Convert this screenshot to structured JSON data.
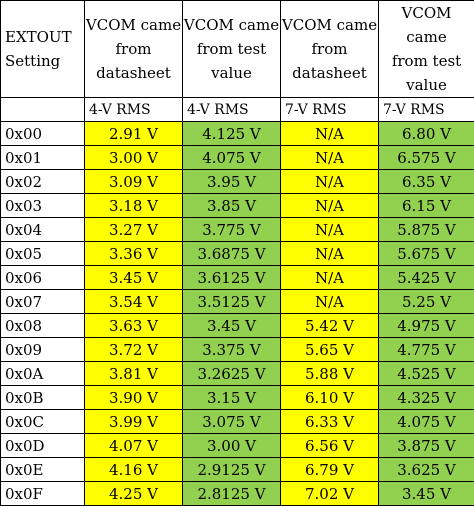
{
  "header": {
    "setting": [
      "EXTOUT",
      "Setting"
    ],
    "col1": [
      "VCOM came",
      "from",
      "datasheet"
    ],
    "col2": [
      "VCOM came",
      "from test",
      "value"
    ],
    "col3": [
      "VCOM came",
      "from",
      "datasheet"
    ],
    "col4": [
      "VCOM came",
      "from test",
      "value"
    ]
  },
  "subheader": {
    "col1": "4-V RMS",
    "col2": "4-V RMS",
    "col3": "7-V RMS",
    "col4": "7-V RMS"
  },
  "colors": {
    "datasheet": "#ffff00",
    "test": "#92d050"
  },
  "rows": [
    {
      "code": "0x00",
      "v4_datasheet": "2.91 V",
      "v4_test": "4.125 V",
      "v7_datasheet": "N/A",
      "v7_test": "6.80 V"
    },
    {
      "code": "0x01",
      "v4_datasheet": "3.00 V",
      "v4_test": "4.075 V",
      "v7_datasheet": "N/A",
      "v7_test": "6.575 V"
    },
    {
      "code": "0x02",
      "v4_datasheet": "3.09 V",
      "v4_test": "3.95 V",
      "v7_datasheet": "N/A",
      "v7_test": "6.35 V"
    },
    {
      "code": "0x03",
      "v4_datasheet": "3.18 V",
      "v4_test": "3.85 V",
      "v7_datasheet": "N/A",
      "v7_test": "6.15 V"
    },
    {
      "code": "0x04",
      "v4_datasheet": "3.27 V",
      "v4_test": "3.775 V",
      "v7_datasheet": "N/A",
      "v7_test": "5.875 V"
    },
    {
      "code": "0x05",
      "v4_datasheet": "3.36 V",
      "v4_test": "3.6875 V",
      "v7_datasheet": "N/A",
      "v7_test": "5.675 V"
    },
    {
      "code": "0x06",
      "v4_datasheet": "3.45 V",
      "v4_test": "3.6125 V",
      "v7_datasheet": "N/A",
      "v7_test": "5.425 V"
    },
    {
      "code": "0x07",
      "v4_datasheet": "3.54 V",
      "v4_test": "3.5125 V",
      "v7_datasheet": "N/A",
      "v7_test": "5.25 V"
    },
    {
      "code": "0x08",
      "v4_datasheet": "3.63 V",
      "v4_test": "3.45 V",
      "v7_datasheet": "5.42 V",
      "v7_test": "4.975 V"
    },
    {
      "code": "0x09",
      "v4_datasheet": "3.72 V",
      "v4_test": "3.375 V",
      "v7_datasheet": "5.65 V",
      "v7_test": "4.775 V"
    },
    {
      "code": "0x0A",
      "v4_datasheet": "3.81 V",
      "v4_test": "3.2625 V",
      "v7_datasheet": "5.88 V",
      "v7_test": "4.525 V"
    },
    {
      "code": "0x0B",
      "v4_datasheet": "3.90 V",
      "v4_test": "3.15 V",
      "v7_datasheet": "6.10 V",
      "v7_test": "4.325 V"
    },
    {
      "code": "0x0C",
      "v4_datasheet": "3.99 V",
      "v4_test": "3.075 V",
      "v7_datasheet": "6.33 V",
      "v7_test": "4.075 V"
    },
    {
      "code": "0x0D",
      "v4_datasheet": "4.07 V",
      "v4_test": "3.00 V",
      "v7_datasheet": "6.56 V",
      "v7_test": "3.875 V"
    },
    {
      "code": "0x0E",
      "v4_datasheet": "4.16 V",
      "v4_test": "2.9125 V",
      "v7_datasheet": "6.79 V",
      "v7_test": "3.625 V"
    },
    {
      "code": "0x0F",
      "v4_datasheet": "4.25 V",
      "v4_test": "2.8125 V",
      "v7_datasheet": "7.02 V",
      "v7_test": "3.45 V"
    }
  ]
}
